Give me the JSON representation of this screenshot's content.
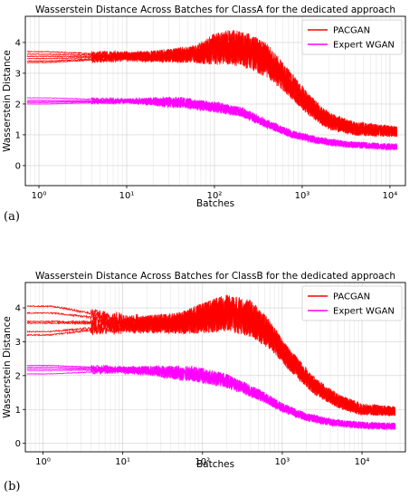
{
  "chart_data": [
    {
      "type": "line",
      "panel_label": "(a)",
      "title": "Wasserstein Distance Across Batches for ClassA for the dedicated approach",
      "xlabel": "Batches",
      "ylabel": "Wasserstein Distance",
      "x_scale": "log",
      "xlim": [
        0.7,
        15000
      ],
      "ylim": [
        -0.65,
        4.85
      ],
      "xticks": [
        1,
        10,
        100,
        1000,
        10000
      ],
      "xtick_labels": [
        "10⁰",
        "10¹",
        "10²",
        "10³",
        "10⁴"
      ],
      "yticks": [
        0,
        1,
        2,
        3,
        4
      ],
      "ytick_labels": [
        "0",
        "1",
        "2",
        "3",
        "4"
      ],
      "grid": true,
      "legend_position": "top-right",
      "x_end": 12000,
      "series": [
        {
          "name": "PACGAN",
          "color": "#ff0000",
          "run_starts": [
            3.7,
            3.62,
            3.55,
            3.48,
            3.4,
            3.35
          ],
          "values": [
            [
              1,
              3.55
            ],
            [
              5,
              3.55
            ],
            [
              20,
              3.55
            ],
            [
              60,
              3.62
            ],
            [
              110,
              3.8
            ],
            [
              150,
              3.85
            ],
            [
              250,
              3.72
            ],
            [
              400,
              3.4
            ],
            [
              700,
              2.7
            ],
            [
              1200,
              1.95
            ],
            [
              2000,
              1.45
            ],
            [
              4000,
              1.2
            ],
            [
              12000,
              1.1
            ]
          ],
          "band": [
            [
              1,
              0.25
            ],
            [
              10,
              0.3
            ],
            [
              60,
              0.45
            ],
            [
              100,
              0.75
            ],
            [
              200,
              0.85
            ],
            [
              400,
              0.8
            ],
            [
              1000,
              0.55
            ],
            [
              3000,
              0.35
            ],
            [
              12000,
              0.25
            ]
          ]
        },
        {
          "name": "Expert WGAN",
          "color": "#ff00ff",
          "run_starts": [
            2.2,
            2.12,
            2.08,
            2.05,
            2.0
          ],
          "values": [
            [
              1,
              2.1
            ],
            [
              10,
              2.1
            ],
            [
              40,
              2.05
            ],
            [
              100,
              1.9
            ],
            [
              200,
              1.75
            ],
            [
              400,
              1.35
            ],
            [
              800,
              1.0
            ],
            [
              1500,
              0.82
            ],
            [
              3000,
              0.7
            ],
            [
              6000,
              0.65
            ],
            [
              12000,
              0.6
            ]
          ],
          "band": [
            [
              1,
              0.12
            ],
            [
              10,
              0.15
            ],
            [
              30,
              0.3
            ],
            [
              100,
              0.25
            ],
            [
              500,
              0.2
            ],
            [
              3000,
              0.15
            ],
            [
              12000,
              0.15
            ]
          ]
        }
      ]
    },
    {
      "type": "line",
      "panel_label": "(b)",
      "title": "Wasserstein Distance Across Batches for ClassB for the dedicated approach",
      "xlabel": "Batches",
      "ylabel": "Wasserstein Distance",
      "x_scale": "log",
      "xlim": [
        0.6,
        35000
      ],
      "ylim": [
        -0.25,
        4.75
      ],
      "xticks": [
        1,
        10,
        100,
        1000,
        10000
      ],
      "xtick_labels": [
        "10⁰",
        "10¹",
        "10²",
        "10³",
        "10⁴"
      ],
      "yticks": [
        0,
        1,
        2,
        3,
        4
      ],
      "ytick_labels": [
        "0",
        "1",
        "2",
        "3",
        "4"
      ],
      "grid": true,
      "legend_position": "top-right",
      "x_end": 26000,
      "series": [
        {
          "name": "PACGAN",
          "color": "#ff0000",
          "run_starts": [
            4.05,
            3.85,
            3.6,
            3.55,
            3.3,
            3.2
          ],
          "values": [
            [
              1,
              3.6
            ],
            [
              10,
              3.5
            ],
            [
              50,
              3.55
            ],
            [
              100,
              3.7
            ],
            [
              200,
              3.85
            ],
            [
              400,
              3.7
            ],
            [
              700,
              3.2
            ],
            [
              1200,
              2.5
            ],
            [
              2500,
              1.7
            ],
            [
              5000,
              1.25
            ],
            [
              10000,
              1.0
            ],
            [
              26000,
              0.95
            ]
          ],
          "band": [
            [
              1,
              0.35
            ],
            [
              10,
              0.5
            ],
            [
              50,
              0.5
            ],
            [
              150,
              0.75
            ],
            [
              400,
              0.8
            ],
            [
              1000,
              0.5
            ],
            [
              5000,
              0.3
            ],
            [
              26000,
              0.2
            ]
          ]
        },
        {
          "name": "Expert WGAN",
          "color": "#ff00ff",
          "run_starts": [
            2.3,
            2.25,
            2.2,
            2.15,
            2.05
          ],
          "values": [
            [
              1,
              2.2
            ],
            [
              20,
              2.15
            ],
            [
              80,
              2.05
            ],
            [
              200,
              1.85
            ],
            [
              500,
              1.45
            ],
            [
              1000,
              1.05
            ],
            [
              2000,
              0.78
            ],
            [
              4000,
              0.62
            ],
            [
              10000,
              0.53
            ],
            [
              26000,
              0.5
            ]
          ],
          "band": [
            [
              1,
              0.15
            ],
            [
              10,
              0.2
            ],
            [
              50,
              0.35
            ],
            [
              200,
              0.3
            ],
            [
              1000,
              0.2
            ],
            [
              5000,
              0.15
            ],
            [
              26000,
              0.15
            ]
          ]
        }
      ]
    }
  ]
}
